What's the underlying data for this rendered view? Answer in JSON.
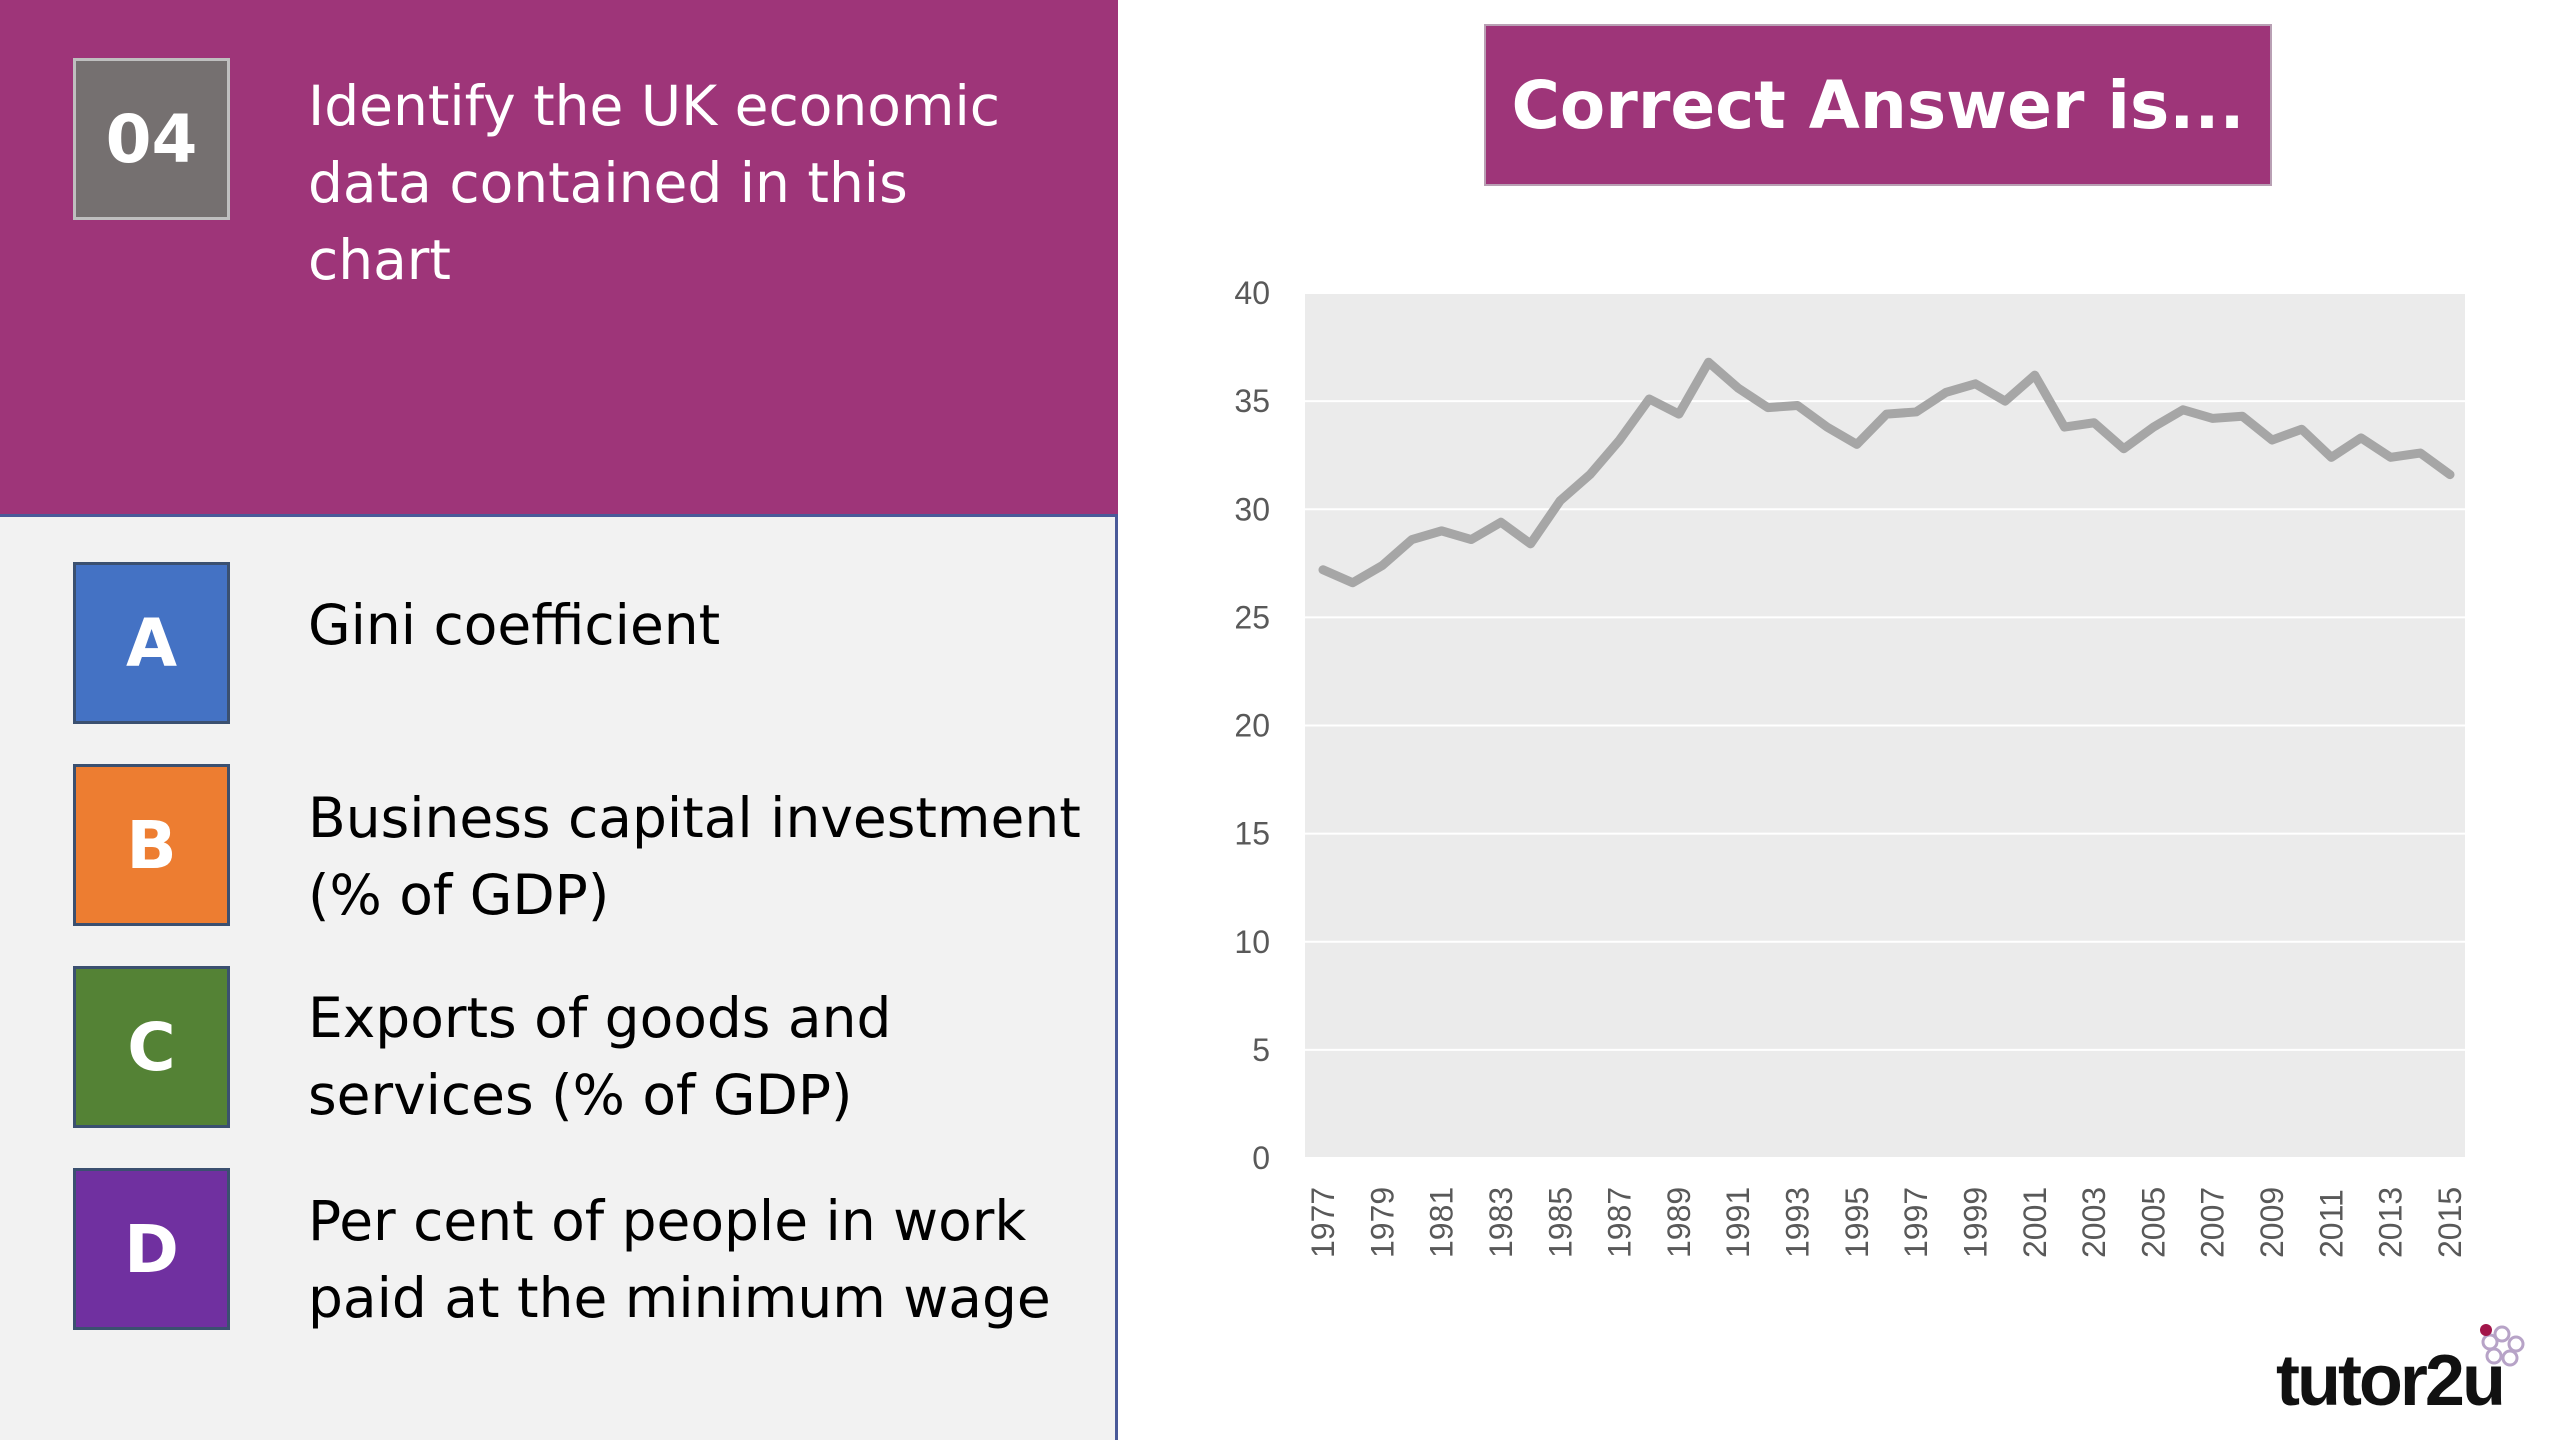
{
  "question": {
    "number": "04",
    "text": "Identify the UK economic data contained in this chart"
  },
  "options": [
    {
      "letter": "A",
      "label": "Gini coefficient",
      "color": "#4472c4"
    },
    {
      "letter": "B",
      "label": "Business capital investment (% of GDP)",
      "color": "#ed7d31"
    },
    {
      "letter": "C",
      "label": "Exports of goods and services (% of GDP)",
      "color": "#548235"
    },
    {
      "letter": "D",
      "label": "Per cent of people in work paid at the minimum wage",
      "color": "#7030a0"
    }
  ],
  "answer_banner": "Correct Answer is...",
  "logo": "tutor2u",
  "colors": {
    "accent": "#9e3579",
    "panel": "#f2f2f2",
    "plot_bg": "#ebebeb",
    "line": "#a6a6a6"
  },
  "chart_data": {
    "type": "line",
    "title": "",
    "xlabel": "",
    "ylabel": "",
    "ylim": [
      0,
      40
    ],
    "yticks": [
      0,
      5,
      10,
      15,
      20,
      25,
      30,
      35,
      40
    ],
    "grid": true,
    "legend": "none",
    "x": [
      1977,
      1978,
      1979,
      1980,
      1981,
      1982,
      1983,
      1984,
      1985,
      1986,
      1987,
      1988,
      1989,
      1990,
      1991,
      1992,
      1993,
      1994,
      1995,
      1996,
      1997,
      1998,
      1999,
      2000,
      2001,
      2002,
      2003,
      2004,
      2005,
      2006,
      2007,
      2008,
      2009,
      2010,
      2011,
      2012,
      2013,
      2014,
      2015
    ],
    "xtick_labels": [
      "1977",
      "1979",
      "1981",
      "1983",
      "1985",
      "1987",
      "1989",
      "1991",
      "1993",
      "1995",
      "1997",
      "1999",
      "2001",
      "2003",
      "2005",
      "2007",
      "2009",
      "2011",
      "2013",
      "2015"
    ],
    "series": [
      {
        "values": [
          27.2,
          26.6,
          27.4,
          28.6,
          29.0,
          28.6,
          29.4,
          28.4,
          30.4,
          31.6,
          33.2,
          35.1,
          34.4,
          36.8,
          35.6,
          34.7,
          34.8,
          33.8,
          33.0,
          34.4,
          34.5,
          35.4,
          35.8,
          35.0,
          36.2,
          33.8,
          34.0,
          32.8,
          33.8,
          34.6,
          34.2,
          34.3,
          33.2,
          33.7,
          32.4,
          33.3,
          32.4,
          32.6,
          31.6
        ]
      }
    ]
  }
}
